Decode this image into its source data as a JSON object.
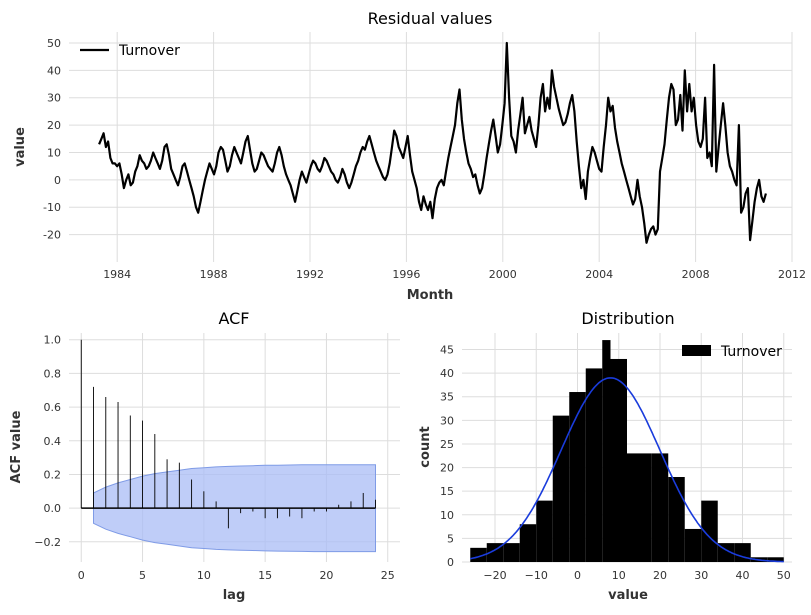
{
  "figure": {
    "background": "#ffffff"
  },
  "chart_data": [
    {
      "type": "line",
      "title": "Residual values",
      "xlabel": "Month",
      "ylabel": "value",
      "legend": {
        "labels": [
          "Turnover"
        ],
        "placement": "top-left"
      },
      "grid": true,
      "color": "#000000",
      "xlim": [
        "1982",
        "2012"
      ],
      "ylim": [
        -30,
        54
      ],
      "xticks": [
        "1984",
        "1988",
        "1992",
        "1996",
        "2000",
        "2004",
        "2008",
        "2012"
      ],
      "yticks": [
        "50",
        "40",
        "30",
        "20",
        "10",
        "0",
        "-10",
        "-20"
      ],
      "x_start": "1983-04",
      "x_end": "2010-12",
      "series": [
        {
          "name": "Turnover",
          "values": [
            13,
            15,
            17,
            12,
            14,
            8,
            6,
            6,
            5,
            6,
            2,
            -3,
            0,
            2,
            -2,
            -1,
            3,
            5,
            9,
            7,
            6,
            4,
            5,
            7,
            10,
            8,
            6,
            4,
            7,
            12,
            13,
            9,
            4,
            2,
            0,
            -2,
            1,
            5,
            6,
            3,
            0,
            -3,
            -6,
            -10,
            -12,
            -8,
            -4,
            0,
            3,
            6,
            4,
            2,
            5,
            10,
            12,
            11,
            7,
            3,
            5,
            9,
            12,
            10,
            8,
            6,
            10,
            14,
            16,
            11,
            6,
            3,
            4,
            7,
            10,
            9,
            7,
            5,
            4,
            3,
            6,
            10,
            12,
            9,
            5,
            2,
            0,
            -2,
            -5,
            -8,
            -4,
            0,
            3,
            1,
            -1,
            2,
            5,
            7,
            6,
            4,
            3,
            5,
            8,
            7,
            5,
            3,
            2,
            0,
            -1,
            1,
            4,
            2,
            -1,
            -3,
            -1,
            2,
            5,
            7,
            10,
            12,
            11,
            14,
            16,
            13,
            10,
            7,
            5,
            3,
            1,
            0,
            2,
            6,
            12,
            18,
            16,
            12,
            10,
            8,
            12,
            16,
            9,
            3,
            0,
            -3,
            -8,
            -11,
            -6,
            -9,
            -11,
            -8,
            -14,
            -7,
            -3,
            -1,
            0,
            -2,
            3,
            8,
            12,
            16,
            20,
            28,
            33,
            22,
            15,
            10,
            6,
            4,
            1,
            2,
            -2,
            -5,
            -3,
            2,
            8,
            13,
            18,
            22,
            16,
            10,
            13,
            20,
            28,
            50,
            30,
            16,
            14,
            10,
            18,
            24,
            30,
            17,
            20,
            23,
            18,
            15,
            12,
            20,
            30,
            35,
            25,
            30,
            26,
            40,
            34,
            30,
            26,
            23,
            20,
            21,
            24,
            28,
            31,
            25,
            14,
            5,
            -3,
            0,
            -7,
            3,
            8,
            12,
            10,
            7,
            4,
            3,
            12,
            20,
            30,
            25,
            27,
            19,
            14,
            10,
            6,
            3,
            0,
            -3,
            -6,
            -9,
            -7,
            0,
            -6,
            -10,
            -16,
            -23,
            -20,
            -18,
            -17,
            -20,
            -18,
            3,
            8,
            13,
            22,
            30,
            35,
            33,
            20,
            22,
            31,
            18,
            40,
            25,
            35,
            25,
            30,
            20,
            14,
            12,
            15,
            30,
            8,
            10,
            5,
            42,
            3,
            12,
            20,
            28,
            20,
            10,
            5,
            3,
            0,
            -2,
            20,
            -12,
            -10,
            -5,
            -3,
            -22,
            -15,
            -8,
            -3,
            0,
            -6,
            -8,
            -5
          ]
        }
      ]
    },
    {
      "type": "bar",
      "title": "ACF",
      "xlabel": "lag",
      "ylabel": "ACF value",
      "grid": true,
      "xlim": [
        -1,
        26
      ],
      "ylim": [
        -0.32,
        1.04
      ],
      "xticks": [
        "0",
        "5",
        "10",
        "15",
        "20",
        "25"
      ],
      "yticks": [
        "1.0",
        "0.8",
        "0.6",
        "0.4",
        "0.2",
        "0.0",
        "−0.2"
      ],
      "lags": [
        0,
        1,
        2,
        3,
        4,
        5,
        6,
        7,
        8,
        9,
        10,
        11,
        12,
        13,
        14,
        15,
        16,
        17,
        18,
        19,
        20,
        21,
        22,
        23,
        24
      ],
      "values": [
        1.0,
        0.72,
        0.66,
        0.63,
        0.55,
        0.52,
        0.44,
        0.29,
        0.27,
        0.17,
        0.1,
        0.04,
        -0.12,
        -0.03,
        -0.02,
        -0.06,
        -0.06,
        -0.05,
        -0.06,
        -0.02,
        -0.02,
        0.02,
        0.04,
        0.09,
        0.05
      ],
      "confidence_band": [
        0.09,
        0.125,
        0.15,
        0.17,
        0.19,
        0.205,
        0.215,
        0.225,
        0.235,
        0.24,
        0.245,
        0.248,
        0.25,
        0.252,
        0.254,
        0.255,
        0.256,
        0.257,
        0.258,
        0.258,
        0.258,
        0.258,
        0.258,
        0.258
      ],
      "band_color": "#a9bcf5",
      "band_edge_color": "#7f9be6"
    },
    {
      "type": "bar",
      "title": "Distribution",
      "xlabel": "value",
      "ylabel": "count",
      "grid": true,
      "legend": {
        "labels": [
          "Turnover"
        ],
        "placement": "top-right"
      },
      "xlim": [
        -28,
        52
      ],
      "ylim": [
        0,
        48.5
      ],
      "xticks": [
        "−20",
        "−10",
        "0",
        "10",
        "20",
        "30",
        "40",
        "50"
      ],
      "yticks": [
        "45",
        "40",
        "35",
        "30",
        "25",
        "20",
        "15",
        "10",
        "5",
        "0"
      ],
      "bin_edges": [
        -26,
        -22,
        -18,
        -14,
        -10,
        -6,
        -2,
        2,
        6,
        8,
        12,
        18,
        22,
        26,
        30,
        34,
        38,
        42,
        46,
        50
      ],
      "counts": [
        3,
        4,
        4,
        8,
        13,
        31,
        36,
        41,
        47,
        43,
        23,
        23,
        18,
        7,
        13,
        4,
        4,
        1,
        1
      ],
      "bar_color": "#000000",
      "fit_color": "#1a3cdc",
      "fit": {
        "peak": 39,
        "mean": 8,
        "sd": 12
      }
    }
  ]
}
